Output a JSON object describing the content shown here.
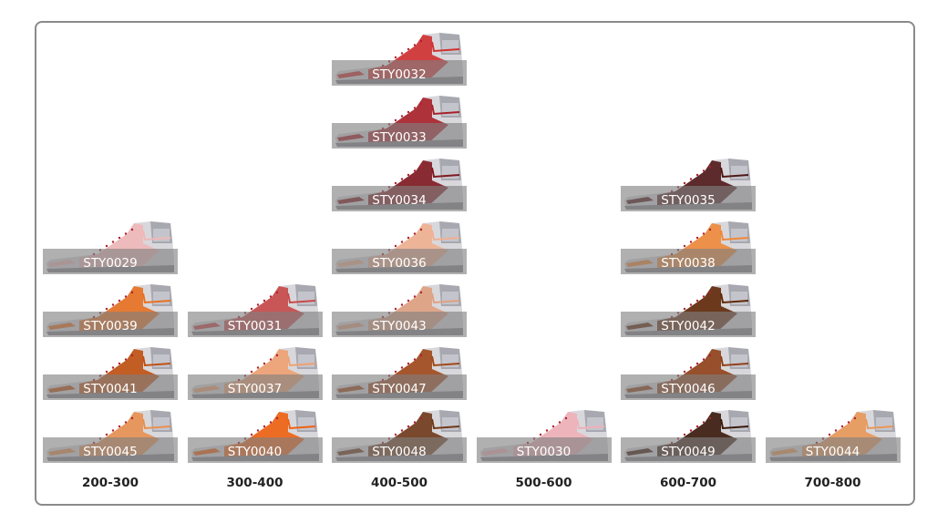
{
  "columns": [
    {
      "label": "200-300",
      "items": [
        {
          "id": "STY0045",
          "color": "#e89050"
        },
        {
          "id": "STY0041",
          "color": "#c05010"
        },
        {
          "id": "STY0039",
          "color": "#e87020"
        },
        {
          "id": "STY0029",
          "color": "#f0b8b8"
        }
      ]
    },
    {
      "label": "300-400",
      "items": [
        {
          "id": "STY0040",
          "color": "#f06010"
        },
        {
          "id": "STY0037",
          "color": "#f0a070"
        },
        {
          "id": "STY0031",
          "color": "#c84848"
        }
      ]
    },
    {
      "label": "400-500",
      "items": [
        {
          "id": "STY0048",
          "color": "#703818"
        },
        {
          "id": "STY0047",
          "color": "#a04818"
        },
        {
          "id": "STY0043",
          "color": "#e0a080"
        },
        {
          "id": "STY0036",
          "color": "#f0b090"
        },
        {
          "id": "STY0034",
          "color": "#801820"
        },
        {
          "id": "STY0033",
          "color": "#a82028"
        },
        {
          "id": "STY0032",
          "color": "#d03030"
        }
      ]
    },
    {
      "label": "500-600",
      "items": [
        {
          "id": "STY0030",
          "color": "#f0b0b8"
        }
      ]
    },
    {
      "label": "600-700",
      "items": [
        {
          "id": "STY0049",
          "color": "#3a1a0a"
        },
        {
          "id": "STY0046",
          "color": "#904018"
        },
        {
          "id": "STY0042",
          "color": "#602808"
        },
        {
          "id": "STY0038",
          "color": "#f08838"
        },
        {
          "id": "STY0035",
          "color": "#501818"
        }
      ]
    },
    {
      "label": "700-800",
      "items": [
        {
          "id": "STY0044",
          "color": "#e89858"
        }
      ]
    }
  ]
}
